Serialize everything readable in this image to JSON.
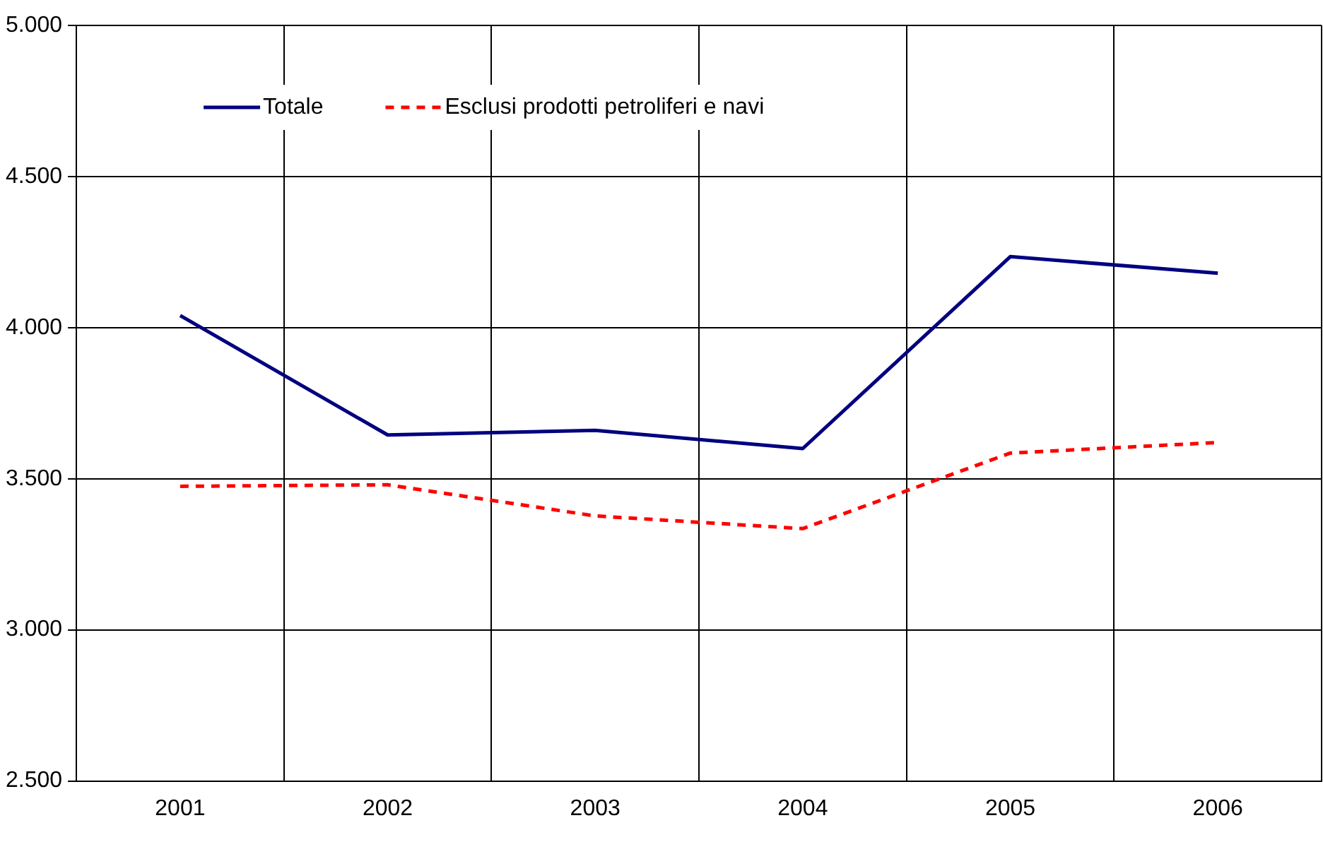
{
  "chart_data": {
    "type": "line",
    "categories": [
      "2001",
      "2002",
      "2003",
      "2004",
      "2005",
      "2006"
    ],
    "series": [
      {
        "name": "Totale",
        "color": "#000080",
        "line_style": "solid",
        "values": [
          4040,
          3645,
          3660,
          3600,
          4235,
          4180
        ]
      },
      {
        "name": "Esclusi prodotti petroliferi e navi",
        "color": "#ff0000",
        "line_style": "dashed",
        "values": [
          3475,
          3480,
          3377,
          3335,
          3585,
          3620
        ]
      }
    ],
    "ylim": [
      2500,
      5000
    ],
    "yticks": [
      {
        "value": 2500,
        "label": "2.500"
      },
      {
        "value": 3000,
        "label": "3.000"
      },
      {
        "value": 3500,
        "label": "3.500"
      },
      {
        "value": 4000,
        "label": "4.000"
      },
      {
        "value": 4500,
        "label": "4.500"
      },
      {
        "value": 5000,
        "label": "5.000"
      }
    ],
    "grid": true,
    "legend": "top left",
    "marker": "none"
  }
}
